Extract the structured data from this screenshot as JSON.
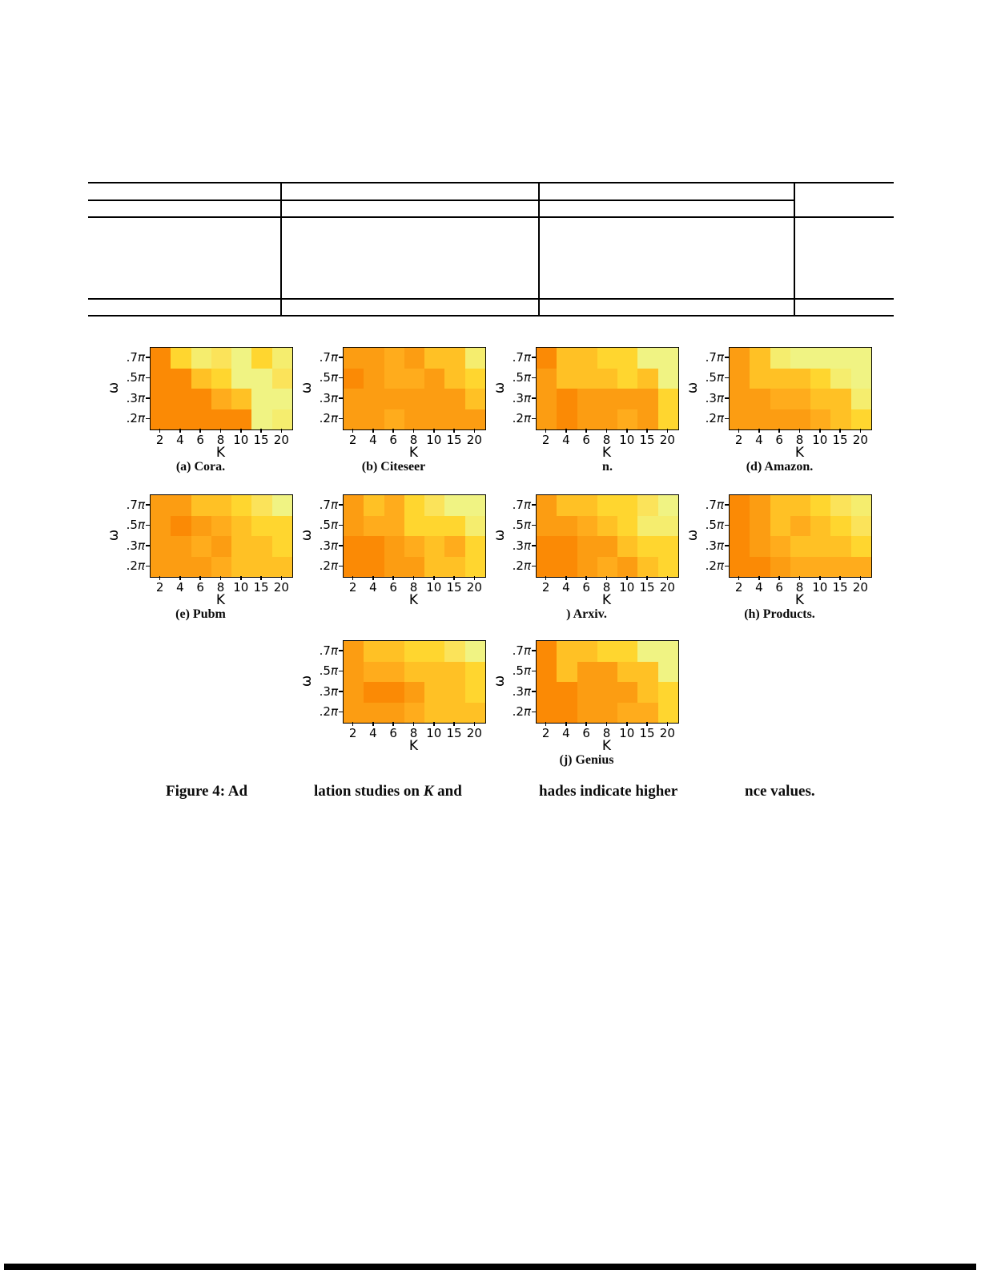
{
  "figure_caption": {
    "seg1": "Figure 4: Ad",
    "seg2_pre": "lation studies on ",
    "seg2_k": "K",
    "seg2_post": " and",
    "seg3": "hades indicate higher",
    "seg4": "nce values."
  },
  "chart_data": [
    {
      "type": "heatmap",
      "caption": "(a) Cora.",
      "grid_pos": [
        0,
        0
      ],
      "xlabel": "K",
      "ylabel": "ω",
      "x_ticks": [
        "2",
        "4",
        "6",
        "8",
        "10",
        "15",
        "20"
      ],
      "y_ticks": [
        ".7π",
        ".5π",
        ".3π",
        ".2π"
      ],
      "cell_colors": [
        [
          "#fb8a05",
          "#ffd62f",
          "#f5ed6e",
          "#fbe35a",
          "#f0f383",
          "#ffd62f",
          "#f5ed6e"
        ],
        [
          "#fb8a05",
          "#fb8a05",
          "#ffc125",
          "#ffd62f",
          "#f0f383",
          "#f0f383",
          "#fbe35a"
        ],
        [
          "#fb8a05",
          "#fb8a05",
          "#fb8a05",
          "#ffac1c",
          "#ffc125",
          "#f0f383",
          "#f0f383"
        ],
        [
          "#fb8a05",
          "#fb8a05",
          "#fb8a05",
          "#fb8a05",
          "#fb8a05",
          "#f0f383",
          "#f5ed6e"
        ]
      ]
    },
    {
      "type": "heatmap",
      "caption": "(b) Citeseer",
      "grid_pos": [
        0,
        1
      ],
      "xlabel": "K",
      "ylabel": "ω",
      "x_ticks": [
        "2",
        "4",
        "6",
        "8",
        "10",
        "15",
        "20"
      ],
      "y_ticks": [
        ".7π",
        ".5π",
        ".3π",
        ".2π"
      ],
      "cell_colors": [
        [
          "#fc9d12",
          "#fc9d12",
          "#ffac1c",
          "#fc9d12",
          "#ffc125",
          "#ffc125",
          "#f5ed6e"
        ],
        [
          "#fb8a05",
          "#fc9d12",
          "#ffac1c",
          "#ffac1c",
          "#fc9d12",
          "#ffc125",
          "#ffd62f"
        ],
        [
          "#fc9d12",
          "#fc9d12",
          "#fc9d12",
          "#fc9d12",
          "#fc9d12",
          "#fc9d12",
          "#ffc125"
        ],
        [
          "#fc9d12",
          "#fc9d12",
          "#ffac1c",
          "#fc9d12",
          "#fc9d12",
          "#fc9d12",
          "#fc9d12"
        ]
      ]
    },
    {
      "type": "heatmap",
      "caption": "n.",
      "caption_dx": 26,
      "grid_pos": [
        0,
        2
      ],
      "xlabel": "K",
      "ylabel": "ω",
      "x_ticks": [
        "2",
        "4",
        "6",
        "8",
        "10",
        "15",
        "20"
      ],
      "y_ticks": [
        ".7π",
        ".5π",
        ".3π",
        ".2π"
      ],
      "cell_colors": [
        [
          "#fb8a05",
          "#ffc125",
          "#ffc125",
          "#ffd62f",
          "#ffd62f",
          "#f0f383",
          "#f0f383"
        ],
        [
          "#fc9d12",
          "#ffc125",
          "#ffc125",
          "#ffc125",
          "#ffd62f",
          "#ffc125",
          "#f0f383"
        ],
        [
          "#fc9d12",
          "#fb8a05",
          "#fc9d12",
          "#fc9d12",
          "#fc9d12",
          "#fc9d12",
          "#ffd62f"
        ],
        [
          "#fc9d12",
          "#fb8a05",
          "#fc9d12",
          "#fc9d12",
          "#ffac1c",
          "#fc9d12",
          "#ffd62f"
        ]
      ]
    },
    {
      "type": "heatmap",
      "caption": "(d) Amazon.",
      "grid_pos": [
        0,
        3
      ],
      "xlabel": "K",
      "ylabel": "ω",
      "x_ticks": [
        "2",
        "4",
        "6",
        "8",
        "10",
        "15",
        "20"
      ],
      "y_ticks": [
        ".7π",
        ".5π",
        ".3π",
        ".2π"
      ],
      "cell_colors": [
        [
          "#fc9d12",
          "#ffc125",
          "#f5ed6e",
          "#f0f383",
          "#f0f383",
          "#f0f383",
          "#f0f383"
        ],
        [
          "#fc9d12",
          "#ffc125",
          "#ffc125",
          "#ffc125",
          "#ffd62f",
          "#f5ed6e",
          "#f0f383"
        ],
        [
          "#fc9d12",
          "#fc9d12",
          "#ffac1c",
          "#ffac1c",
          "#ffc125",
          "#ffc125",
          "#f5ed6e"
        ],
        [
          "#fc9d12",
          "#fc9d12",
          "#fc9d12",
          "#fc9d12",
          "#ffac1c",
          "#ffc125",
          "#ffd62f"
        ]
      ]
    },
    {
      "type": "heatmap",
      "caption": "(e) Pubm",
      "grid_pos": [
        1,
        0
      ],
      "xlabel": "K",
      "ylabel": "ω",
      "x_ticks": [
        "2",
        "4",
        "6",
        "8",
        "10",
        "15",
        "20"
      ],
      "y_ticks": [
        ".7π",
        ".5π",
        ".3π",
        ".2π"
      ],
      "cell_colors": [
        [
          "#fc9d12",
          "#fc9d12",
          "#ffc125",
          "#ffc125",
          "#ffd62f",
          "#fbe35a",
          "#f0f383"
        ],
        [
          "#fc9d12",
          "#fb8a05",
          "#fc9d12",
          "#ffac1c",
          "#ffc125",
          "#ffd62f",
          "#ffd62f"
        ],
        [
          "#fc9d12",
          "#fc9d12",
          "#ffac1c",
          "#fc9d12",
          "#ffc125",
          "#ffc125",
          "#ffd62f"
        ],
        [
          "#fc9d12",
          "#fc9d12",
          "#fc9d12",
          "#ffac1c",
          "#ffc125",
          "#ffc125",
          "#ffc125"
        ]
      ]
    },
    {
      "type": "heatmap",
      "caption": "",
      "grid_pos": [
        1,
        1
      ],
      "xlabel": "K",
      "ylabel": "ω",
      "x_ticks": [
        "2",
        "4",
        "6",
        "8",
        "10",
        "15",
        "20"
      ],
      "y_ticks": [
        ".7π",
        ".5π",
        ".3π",
        ".2π"
      ],
      "cell_colors": [
        [
          "#fc9d12",
          "#ffc125",
          "#ffac1c",
          "#ffd62f",
          "#fbe35a",
          "#f0f383",
          "#f0f383"
        ],
        [
          "#fc9d12",
          "#ffac1c",
          "#ffac1c",
          "#ffd62f",
          "#ffd62f",
          "#ffd62f",
          "#f5ed6e"
        ],
        [
          "#fb8a05",
          "#fb8a05",
          "#fc9d12",
          "#ffac1c",
          "#ffc125",
          "#ffac1c",
          "#ffd62f"
        ],
        [
          "#fb8a05",
          "#fb8a05",
          "#fc9d12",
          "#fc9d12",
          "#ffc125",
          "#ffc125",
          "#ffd62f"
        ]
      ]
    },
    {
      "type": "heatmap",
      "caption": ") Arxiv.",
      "grid_pos": [
        1,
        2
      ],
      "xlabel": "K",
      "ylabel": "ω",
      "x_ticks": [
        "2",
        "4",
        "6",
        "8",
        "10",
        "15",
        "20"
      ],
      "y_ticks": [
        ".7π",
        ".5π",
        ".3π",
        ".2π"
      ],
      "cell_colors": [
        [
          "#fc9d12",
          "#ffc125",
          "#ffc125",
          "#ffd62f",
          "#ffd62f",
          "#fbe35a",
          "#f0f383"
        ],
        [
          "#fc9d12",
          "#fc9d12",
          "#ffac1c",
          "#ffc125",
          "#ffd62f",
          "#f5ed6e",
          "#f5ed6e"
        ],
        [
          "#fb8a05",
          "#fb8a05",
          "#fc9d12",
          "#fc9d12",
          "#ffc125",
          "#ffd62f",
          "#ffd62f"
        ],
        [
          "#fb8a05",
          "#fb8a05",
          "#fc9d12",
          "#ffac1c",
          "#fc9d12",
          "#ffc125",
          "#ffd62f"
        ]
      ]
    },
    {
      "type": "heatmap",
      "caption": "(h) Products.",
      "grid_pos": [
        1,
        3
      ],
      "xlabel": "K",
      "ylabel": "ω",
      "x_ticks": [
        "2",
        "4",
        "6",
        "8",
        "10",
        "15",
        "20"
      ],
      "y_ticks": [
        ".7π",
        ".5π",
        ".3π",
        ".2π"
      ],
      "cell_colors": [
        [
          "#fb8a05",
          "#fc9d12",
          "#ffc125",
          "#ffc125",
          "#ffd62f",
          "#fbe35a",
          "#f5ed6e"
        ],
        [
          "#fb8a05",
          "#fc9d12",
          "#ffc125",
          "#ffac1c",
          "#ffc125",
          "#ffd62f",
          "#fbe35a"
        ],
        [
          "#fb8a05",
          "#fc9d12",
          "#ffac1c",
          "#ffc125",
          "#ffc125",
          "#ffc125",
          "#ffd62f"
        ],
        [
          "#fb8a05",
          "#fb8a05",
          "#fc9d12",
          "#ffac1c",
          "#ffac1c",
          "#ffac1c",
          "#ffac1c"
        ]
      ]
    },
    {
      "type": "heatmap",
      "caption": "",
      "grid_pos": [
        2,
        1
      ],
      "xlabel": "K",
      "ylabel": "ω",
      "x_ticks": [
        "2",
        "4",
        "6",
        "8",
        "10",
        "15",
        "20"
      ],
      "y_ticks": [
        ".7π",
        ".5π",
        ".3π",
        ".2π"
      ],
      "cell_colors": [
        [
          "#fc9d12",
          "#ffc125",
          "#ffc125",
          "#ffd62f",
          "#ffd62f",
          "#fbe35a",
          "#f0f383"
        ],
        [
          "#fc9d12",
          "#ffac1c",
          "#ffac1c",
          "#ffc125",
          "#ffc125",
          "#ffc125",
          "#ffd62f"
        ],
        [
          "#fc9d12",
          "#fb8a05",
          "#fb8a05",
          "#fc9d12",
          "#ffc125",
          "#ffc125",
          "#ffd62f"
        ],
        [
          "#fc9d12",
          "#fc9d12",
          "#fc9d12",
          "#ffac1c",
          "#ffc125",
          "#ffc125",
          "#ffc125"
        ]
      ]
    },
    {
      "type": "heatmap",
      "caption": "(j) Genius",
      "grid_pos": [
        2,
        2
      ],
      "xlabel": "K",
      "ylabel": "ω",
      "x_ticks": [
        "2",
        "4",
        "6",
        "8",
        "10",
        "15",
        "20"
      ],
      "y_ticks": [
        ".7π",
        ".5π",
        ".3π",
        ".2π"
      ],
      "cell_colors": [
        [
          "#fb8a05",
          "#ffc125",
          "#ffc125",
          "#ffd62f",
          "#ffd62f",
          "#f0f383",
          "#f0f383"
        ],
        [
          "#fb8a05",
          "#ffc125",
          "#fc9d12",
          "#fc9d12",
          "#ffc125",
          "#ffc125",
          "#f0f383"
        ],
        [
          "#fb8a05",
          "#fb8a05",
          "#fc9d12",
          "#fc9d12",
          "#fc9d12",
          "#ffc125",
          "#ffd62f"
        ],
        [
          "#fb8a05",
          "#fb8a05",
          "#fc9d12",
          "#fc9d12",
          "#ffac1c",
          "#ffac1c",
          "#ffd62f"
        ]
      ]
    }
  ]
}
